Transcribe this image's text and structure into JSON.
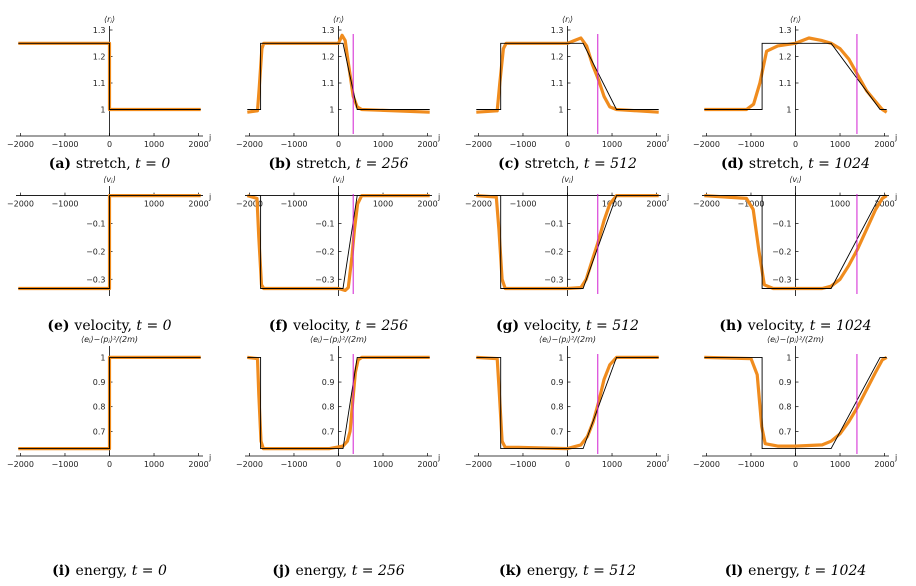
{
  "panel_ticks": {
    "x": [
      -2000,
      -1000,
      0,
      1000,
      2000
    ],
    "x_labels": [
      "−2000",
      "−1000",
      "0",
      "1000",
      "2000"
    ],
    "x_axis_label": "j"
  },
  "colors": {
    "simulation": "#f08c1e",
    "theory": "#000000",
    "marker": "#d21ed2"
  },
  "chart_data": [
    {
      "id": "a",
      "type": "line",
      "row": 0,
      "col": 0,
      "quantity": "stretch",
      "t": 0,
      "ylabel": "⟨rⱼ⟩",
      "caption_letter": "(a)",
      "caption_name": "stretch",
      "caption_eq": "t = 0",
      "xlim": [
        -2100,
        2100
      ],
      "ylim": [
        0.9,
        1.3
      ],
      "x_axis_at": 0.9,
      "y_ticks": [
        1,
        1.1,
        1.2,
        1.3
      ],
      "y_tick_labels": [
        "1",
        "1.1",
        "1.2",
        "1.3"
      ],
      "series": [
        {
          "x": [
            -2048,
            0,
            0,
            2048
          ],
          "y": [
            1.25,
            1.25,
            1.0,
            1.0
          ]
        },
        {
          "x": [
            -2048,
            0,
            0,
            2048
          ],
          "y": [
            1.25,
            1.25,
            1.0,
            1.0
          ]
        }
      ],
      "marker_x": null
    },
    {
      "id": "b",
      "type": "line",
      "row": 0,
      "col": 1,
      "quantity": "stretch",
      "t": 256,
      "ylabel": "⟨rⱼ⟩",
      "caption_letter": "(b)",
      "caption_name": "stretch",
      "caption_eq": "t = 256",
      "xlim": [
        -2100,
        2100
      ],
      "ylim": [
        0.9,
        1.3
      ],
      "x_axis_at": 0.9,
      "y_ticks": [
        1,
        1.1,
        1.2,
        1.3
      ],
      "y_tick_labels": [
        "1",
        "1.1",
        "1.2",
        "1.3"
      ],
      "series": [
        {
          "x": [
            -2048,
            -1820,
            -1780,
            -1720,
            -1680,
            -1600,
            -400,
            0,
            80,
            150,
            200,
            330,
            420,
            520,
            2048
          ],
          "y": [
            0.99,
            0.995,
            1.08,
            1.23,
            1.25,
            1.25,
            1.25,
            1.25,
            1.28,
            1.26,
            1.2,
            1.05,
            1.01,
            1.0,
            0.99
          ]
        },
        {
          "x": [
            -2048,
            -1750,
            -1750,
            100,
            420,
            2048
          ],
          "y": [
            1.0,
            1.0,
            1.25,
            1.25,
            1.0,
            1.0
          ]
        }
      ],
      "marker_x": 330
    },
    {
      "id": "c",
      "type": "line",
      "row": 0,
      "col": 2,
      "quantity": "stretch",
      "t": 512,
      "ylabel": "⟨rⱼ⟩",
      "caption_letter": "(c)",
      "caption_name": "stretch",
      "caption_eq": "t = 512",
      "xlim": [
        -2100,
        2100
      ],
      "ylim": [
        0.9,
        1.3
      ],
      "x_axis_at": 0.9,
      "y_ticks": [
        1,
        1.1,
        1.2,
        1.3
      ],
      "y_tick_labels": [
        "1",
        "1.1",
        "1.2",
        "1.3"
      ],
      "series": [
        {
          "x": [
            -2048,
            -1580,
            -1520,
            -1440,
            -1380,
            -1200,
            0,
            150,
            300,
            430,
            560,
            700,
            820,
            950,
            1100,
            2048
          ],
          "y": [
            0.99,
            0.995,
            1.1,
            1.23,
            1.25,
            1.25,
            1.25,
            1.26,
            1.27,
            1.24,
            1.17,
            1.11,
            1.05,
            1.01,
            1.0,
            0.99
          ]
        },
        {
          "x": [
            -2048,
            -1500,
            -1500,
            350,
            1100,
            2048
          ],
          "y": [
            1.0,
            1.0,
            1.25,
            1.25,
            1.0,
            1.0
          ]
        }
      ],
      "marker_x": 680
    },
    {
      "id": "d",
      "type": "line",
      "row": 0,
      "col": 3,
      "quantity": "stretch",
      "t": 1024,
      "ylabel": "⟨rⱼ⟩",
      "caption_letter": "(d)",
      "caption_name": "stretch",
      "caption_eq": "t = 1024",
      "xlim": [
        -2100,
        2100
      ],
      "ylim": [
        0.9,
        1.3
      ],
      "x_axis_at": 0.9,
      "y_ticks": [
        1,
        1.1,
        1.2,
        1.3
      ],
      "y_tick_labels": [
        "1",
        "1.1",
        "1.2",
        "1.3"
      ],
      "series": [
        {
          "x": [
            -2048,
            -1100,
            -940,
            -800,
            -650,
            -400,
            0,
            300,
            600,
            800,
            1000,
            1200,
            1400,
            1600,
            1800,
            1950,
            2048
          ],
          "y": [
            1.0,
            1.0,
            1.02,
            1.1,
            1.22,
            1.24,
            1.25,
            1.27,
            1.26,
            1.25,
            1.23,
            1.19,
            1.13,
            1.07,
            1.03,
            1.0,
            0.99
          ]
        },
        {
          "x": [
            -2048,
            -750,
            -750,
            800,
            1900,
            2048
          ],
          "y": [
            1.0,
            1.0,
            1.25,
            1.25,
            1.0,
            1.0
          ]
        }
      ],
      "marker_x": 1380
    },
    {
      "id": "e",
      "type": "line",
      "row": 1,
      "col": 0,
      "quantity": "velocity",
      "t": 0,
      "ylabel": "⟨vⱼ⟩",
      "caption_letter": "(e)",
      "caption_name": "velocity",
      "caption_eq": "t = 0",
      "xlim": [
        -2100,
        2100
      ],
      "ylim": [
        -0.36,
        0.02
      ],
      "x_axis_at": 0,
      "y_ticks": [
        -0.1,
        -0.2,
        -0.3
      ],
      "y_tick_labels": [
        "−0.1",
        "−0.2",
        "−0.3"
      ],
      "series": [
        {
          "x": [
            -2048,
            0,
            0,
            2048
          ],
          "y": [
            -0.333,
            -0.333,
            0,
            0
          ]
        },
        {
          "x": [
            -2048,
            0,
            0,
            2048
          ],
          "y": [
            -0.333,
            -0.333,
            0,
            0
          ]
        }
      ],
      "marker_x": null
    },
    {
      "id": "f",
      "type": "line",
      "row": 1,
      "col": 1,
      "quantity": "velocity",
      "t": 256,
      "ylabel": "⟨vⱼ⟩",
      "caption_letter": "(f)",
      "caption_name": "velocity",
      "caption_eq": "t = 256",
      "xlim": [
        -2100,
        2100
      ],
      "ylim": [
        -0.36,
        0.02
      ],
      "x_axis_at": 0,
      "y_ticks": [
        -0.1,
        -0.2,
        -0.3
      ],
      "y_tick_labels": [
        "−0.1",
        "−0.2",
        "−0.3"
      ],
      "series": [
        {
          "x": [
            -2048,
            -1830,
            -1790,
            -1730,
            -1680,
            -1400,
            0,
            150,
            220,
            300,
            360,
            430,
            520,
            2048
          ],
          "y": [
            0,
            -0.01,
            -0.15,
            -0.32,
            -0.333,
            -0.333,
            -0.333,
            -0.34,
            -0.33,
            -0.22,
            -0.12,
            -0.03,
            0,
            0
          ]
        },
        {
          "x": [
            -2048,
            -1750,
            -1750,
            100,
            420,
            2048
          ],
          "y": [
            0,
            0,
            -0.333,
            -0.333,
            0,
            0
          ]
        }
      ],
      "marker_x": 330
    },
    {
      "id": "g",
      "type": "line",
      "row": 1,
      "col": 2,
      "quantity": "velocity",
      "t": 512,
      "ylabel": "⟨vⱼ⟩",
      "caption_letter": "(g)",
      "caption_name": "velocity",
      "caption_eq": "t = 512",
      "xlim": [
        -2100,
        2100
      ],
      "ylim": [
        -0.36,
        0.02
      ],
      "x_axis_at": 0,
      "y_ticks": [
        -0.1,
        -0.2,
        -0.3
      ],
      "y_tick_labels": [
        "−0.1",
        "−0.2",
        "−0.3"
      ],
      "series": [
        {
          "x": [
            -2048,
            -1600,
            -1540,
            -1470,
            -1400,
            -1200,
            0,
            300,
            420,
            540,
            680,
            820,
            950,
            1100,
            2048
          ],
          "y": [
            0,
            -0.005,
            -0.12,
            -0.3,
            -0.333,
            -0.333,
            -0.333,
            -0.33,
            -0.3,
            -0.24,
            -0.17,
            -0.09,
            -0.03,
            0,
            0
          ]
        },
        {
          "x": [
            -2048,
            -1500,
            -1500,
            350,
            1100,
            2048
          ],
          "y": [
            0,
            0,
            -0.333,
            -0.333,
            0,
            0
          ]
        }
      ],
      "marker_x": 680
    },
    {
      "id": "h",
      "type": "line",
      "row": 1,
      "col": 3,
      "quantity": "velocity",
      "t": 1024,
      "ylabel": "⟨vⱼ⟩",
      "caption_letter": "(h)",
      "caption_name": "velocity",
      "caption_eq": "t = 1024",
      "xlim": [
        -2100,
        2100
      ],
      "ylim": [
        -0.36,
        0.02
      ],
      "x_axis_at": 0,
      "y_ticks": [
        -0.1,
        -0.2,
        -0.3
      ],
      "y_tick_labels": [
        "−0.1",
        "−0.2",
        "−0.3"
      ],
      "series": [
        {
          "x": [
            -2048,
            -1100,
            -950,
            -820,
            -700,
            -500,
            0,
            600,
            800,
            1000,
            1200,
            1400,
            1600,
            1800,
            1950,
            2048
          ],
          "y": [
            0,
            -0.01,
            -0.05,
            -0.2,
            -0.32,
            -0.333,
            -0.333,
            -0.333,
            -0.325,
            -0.3,
            -0.25,
            -0.19,
            -0.12,
            -0.05,
            -0.01,
            0
          ]
        },
        {
          "x": [
            -2048,
            -750,
            -750,
            800,
            1900,
            2048
          ],
          "y": [
            0,
            0,
            -0.333,
            -0.333,
            0,
            0
          ]
        }
      ],
      "marker_x": 1380
    },
    {
      "id": "i",
      "type": "line",
      "row": 2,
      "col": 0,
      "quantity": "energy",
      "t": 0,
      "ylabel": "⟨eⱼ⟩−⟨pⱼ⟩²/(2m)",
      "caption_letter": "(i)",
      "caption_name": "energy",
      "caption_eq": "t = 0",
      "xlim": [
        -2100,
        2100
      ],
      "ylim": [
        0.6,
        1.03
      ],
      "x_axis_at": 0.6,
      "y_ticks": [
        0.7,
        0.8,
        0.9,
        1
      ],
      "y_tick_labels": [
        "0.7",
        "0.8",
        "0.9",
        "1"
      ],
      "series": [
        {
          "x": [
            -2048,
            0,
            0,
            2048
          ],
          "y": [
            0.63,
            0.63,
            1.0,
            1.0
          ]
        },
        {
          "x": [
            -2048,
            0,
            0,
            2048
          ],
          "y": [
            0.63,
            0.63,
            1.0,
            1.0
          ]
        }
      ],
      "marker_x": null
    },
    {
      "id": "j",
      "type": "line",
      "row": 2,
      "col": 1,
      "quantity": "energy",
      "t": 256,
      "ylabel": "⟨eⱼ⟩−⟨pⱼ⟩²/(2m)",
      "caption_letter": "(j)",
      "caption_name": "energy",
      "caption_eq": "t = 256",
      "xlim": [
        -2100,
        2100
      ],
      "ylim": [
        0.6,
        1.03
      ],
      "x_axis_at": 0.6,
      "y_ticks": [
        0.7,
        0.8,
        0.9,
        1
      ],
      "y_tick_labels": [
        "0.7",
        "0.8",
        "0.9",
        "1"
      ],
      "series": [
        {
          "x": [
            -2048,
            -1820,
            -1790,
            -1740,
            -1690,
            -1400,
            -200,
            100,
            200,
            260,
            320,
            380,
            440,
            520,
            2048
          ],
          "y": [
            1.0,
            0.995,
            0.85,
            0.66,
            0.63,
            0.63,
            0.63,
            0.64,
            0.66,
            0.7,
            0.82,
            0.94,
            0.99,
            1.0,
            1.0
          ]
        },
        {
          "x": [
            -2048,
            -1750,
            -1750,
            100,
            420,
            2048
          ],
          "y": [
            1.0,
            1.0,
            0.63,
            0.63,
            1.0,
            1.0
          ]
        }
      ],
      "marker_x": 330
    },
    {
      "id": "k",
      "type": "line",
      "row": 2,
      "col": 2,
      "quantity": "energy",
      "t": 512,
      "ylabel": "⟨eⱼ⟩−⟨pⱼ⟩²/(2m)",
      "caption_letter": "(k)",
      "caption_name": "energy",
      "caption_eq": "t = 512",
      "xlim": [
        -2100,
        2100
      ],
      "ylim": [
        0.6,
        1.03
      ],
      "x_axis_at": 0.6,
      "y_ticks": [
        0.7,
        0.8,
        0.9,
        1
      ],
      "y_tick_labels": [
        "0.7",
        "0.8",
        "0.9",
        "1"
      ],
      "series": [
        {
          "x": [
            -2048,
            -1580,
            -1530,
            -1470,
            -1400,
            -1100,
            0,
            300,
            450,
            580,
            700,
            820,
            950,
            1100,
            2048
          ],
          "y": [
            1.0,
            0.995,
            0.85,
            0.66,
            0.635,
            0.635,
            0.63,
            0.645,
            0.68,
            0.74,
            0.82,
            0.91,
            0.97,
            1.0,
            1.0
          ]
        },
        {
          "x": [
            -2048,
            -1500,
            -1500,
            350,
            1100,
            2048
          ],
          "y": [
            1.0,
            1.0,
            0.63,
            0.63,
            1.0,
            1.0
          ]
        }
      ],
      "marker_x": 680
    },
    {
      "id": "l",
      "type": "line",
      "row": 2,
      "col": 3,
      "quantity": "energy",
      "t": 1024,
      "ylabel": "⟨eⱼ⟩−⟨pⱼ⟩²/(2m)",
      "caption_letter": "(l)",
      "caption_name": "energy",
      "caption_eq": "t = 1024",
      "xlim": [
        -2100,
        2100
      ],
      "ylim": [
        0.6,
        1.03
      ],
      "x_axis_at": 0.6,
      "y_ticks": [
        0.7,
        0.8,
        0.9,
        1
      ],
      "y_tick_labels": [
        "0.7",
        "0.8",
        "0.9",
        "1"
      ],
      "series": [
        {
          "x": [
            -2048,
            -1000,
            -860,
            -760,
            -680,
            -400,
            0,
            600,
            800,
            1000,
            1200,
            1400,
            1600,
            1800,
            1950,
            2048
          ],
          "y": [
            1.0,
            0.995,
            0.93,
            0.72,
            0.65,
            0.64,
            0.64,
            0.645,
            0.66,
            0.69,
            0.74,
            0.8,
            0.87,
            0.94,
            0.99,
            1.0
          ]
        },
        {
          "x": [
            -2048,
            -750,
            -750,
            800,
            1900,
            2048
          ],
          "y": [
            1.0,
            1.0,
            0.63,
            0.63,
            1.0,
            1.0
          ]
        }
      ],
      "marker_x": 1380
    }
  ]
}
